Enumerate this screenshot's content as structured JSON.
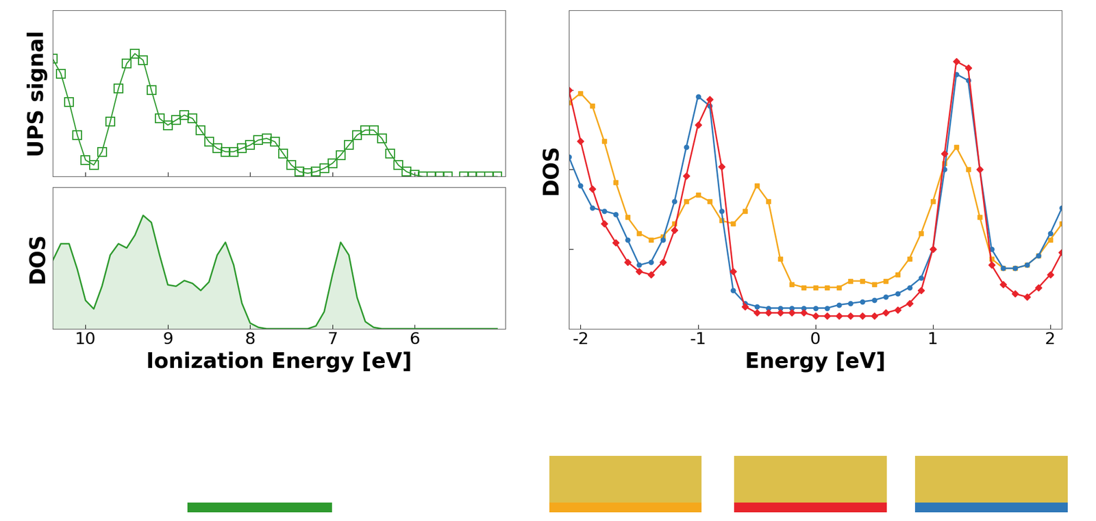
{
  "chart_data": [
    {
      "type": "line",
      "ylabel": "UPS signal",
      "x": [
        10.4,
        10.3,
        10.2,
        10.1,
        10.0,
        9.9,
        9.8,
        9.7,
        9.6,
        9.5,
        9.4,
        9.3,
        9.2,
        9.1,
        9.0,
        8.9,
        8.8,
        8.7,
        8.6,
        8.5,
        8.4,
        8.3,
        8.2,
        8.1,
        8.0,
        7.9,
        7.8,
        7.7,
        7.6,
        7.5,
        7.4,
        7.3,
        7.2,
        7.1,
        7.0,
        6.9,
        6.8,
        6.7,
        6.6,
        6.5,
        6.4,
        6.3,
        6.2,
        6.1,
        6.0,
        5.9,
        5.8,
        5.7,
        5.6,
        5.5,
        5.4,
        5.3,
        5.2,
        5.1,
        5.0
      ],
      "series": [
        {
          "color": "#2e9a2e",
          "marker": "open_square",
          "values": [
            0.71,
            0.62,
            0.45,
            0.25,
            0.1,
            0.07,
            0.15,
            0.33,
            0.53,
            0.68,
            0.74,
            0.7,
            0.52,
            0.35,
            0.31,
            0.34,
            0.37,
            0.35,
            0.28,
            0.21,
            0.17,
            0.15,
            0.15,
            0.17,
            0.19,
            0.22,
            0.23,
            0.21,
            0.14,
            0.07,
            0.03,
            0.02,
            0.03,
            0.05,
            0.08,
            0.13,
            0.19,
            0.25,
            0.28,
            0.28,
            0.23,
            0.14,
            0.07,
            0.03,
            0.01,
            0,
            0,
            0,
            0,
            null,
            0,
            0,
            0,
            0,
            0
          ]
        }
      ],
      "xlim": [
        10.4,
        4.9
      ],
      "ylim": [
        0,
        1
      ],
      "xticks": [
        10,
        9,
        8,
        7,
        6
      ],
      "yticks": [],
      "tick_labels": false
    },
    {
      "type": "area",
      "ylabel": "DOS",
      "xlabel": "Ionization Energy [eV]",
      "x": [
        10.4,
        10.3,
        10.2,
        10.1,
        10.0,
        9.9,
        9.8,
        9.7,
        9.6,
        9.5,
        9.4,
        9.3,
        9.2,
        9.1,
        9.0,
        8.9,
        8.8,
        8.7,
        8.6,
        8.5,
        8.4,
        8.3,
        8.2,
        8.1,
        8.0,
        7.9,
        7.8,
        7.7,
        7.6,
        7.5,
        7.4,
        7.3,
        7.2,
        7.1,
        7.0,
        6.9,
        6.8,
        6.7,
        6.6,
        6.5,
        6.4,
        6.3,
        6.2,
        6.1,
        6.0,
        5.9,
        5.8,
        5.7,
        5.6,
        5.5,
        5.4,
        5.3,
        5.2,
        5.1,
        5.0
      ],
      "series": [
        {
          "color": "#2e9a2e",
          "values": [
            0.48,
            0.6,
            0.6,
            0.42,
            0.2,
            0.14,
            0.3,
            0.52,
            0.6,
            0.57,
            0.66,
            0.8,
            0.75,
            0.52,
            0.31,
            0.3,
            0.34,
            0.32,
            0.27,
            0.33,
            0.52,
            0.61,
            0.45,
            0.18,
            0.04,
            0.01,
            0,
            0,
            0,
            0,
            0,
            0,
            0.02,
            0.12,
            0.38,
            0.61,
            0.52,
            0.22,
            0.05,
            0.01,
            0,
            0,
            0,
            0,
            0,
            0,
            0,
            0,
            0,
            0,
            0,
            0,
            0,
            0,
            0
          ]
        }
      ],
      "xlim": [
        10.4,
        4.9
      ],
      "ylim": [
        0,
        1
      ],
      "xticks": [
        10,
        9,
        8,
        7,
        6
      ],
      "yticks": [],
      "tick_labels": "x"
    },
    {
      "type": "line",
      "ylabel": "DOS",
      "xlabel": "Energy [eV]",
      "x": [
        -2.1,
        -2.0,
        -1.9,
        -1.8,
        -1.7,
        -1.6,
        -1.5,
        -1.4,
        -1.3,
        -1.2,
        -1.1,
        -1.0,
        -0.9,
        -0.8,
        -0.7,
        -0.6,
        -0.5,
        -0.4,
        -0.3,
        -0.2,
        -0.1,
        0.0,
        0.1,
        0.2,
        0.3,
        0.4,
        0.5,
        0.6,
        0.7,
        0.8,
        0.9,
        1.0,
        1.1,
        1.2,
        1.3,
        1.4,
        1.5,
        1.6,
        1.7,
        1.8,
        1.9,
        2.0,
        2.1
      ],
      "series": [
        {
          "color": "#f5a81c",
          "marker": "square",
          "values": [
            0.71,
            0.74,
            0.7,
            0.59,
            0.46,
            0.35,
            0.3,
            0.28,
            0.29,
            0.33,
            0.4,
            0.42,
            0.4,
            0.34,
            0.33,
            0.37,
            0.45,
            0.4,
            0.22,
            0.14,
            0.13,
            0.13,
            0.13,
            0.13,
            0.15,
            0.15,
            0.14,
            0.15,
            0.17,
            0.22,
            0.3,
            0.4,
            0.52,
            0.57,
            0.5,
            0.35,
            0.22,
            0.19,
            0.19,
            0.2,
            0.23,
            0.28,
            0.33
          ]
        },
        {
          "color": "#2f78b8",
          "marker": "circle",
          "values": [
            0.54,
            0.45,
            0.38,
            0.37,
            0.36,
            0.28,
            0.2,
            0.21,
            0.28,
            0.4,
            0.57,
            0.73,
            0.7,
            0.37,
            0.12,
            0.08,
            0.07,
            0.065,
            0.065,
            0.065,
            0.065,
            0.065,
            0.065,
            0.075,
            0.08,
            0.085,
            0.09,
            0.1,
            0.11,
            0.13,
            0.16,
            0.25,
            0.5,
            0.8,
            0.78,
            0.5,
            0.25,
            0.19,
            0.19,
            0.2,
            0.23,
            0.3,
            0.38
          ]
        },
        {
          "color": "#e8242b",
          "marker": "diamond",
          "values": [
            0.75,
            0.59,
            0.44,
            0.33,
            0.27,
            0.21,
            0.18,
            0.17,
            0.21,
            0.31,
            0.48,
            0.64,
            0.72,
            0.51,
            0.18,
            0.07,
            0.05,
            0.05,
            0.05,
            0.05,
            0.05,
            0.04,
            0.04,
            0.04,
            0.04,
            0.04,
            0.04,
            0.05,
            0.06,
            0.08,
            0.12,
            0.25,
            0.55,
            0.84,
            0.82,
            0.5,
            0.2,
            0.14,
            0.11,
            0.1,
            0.13,
            0.17,
            0.24
          ]
        }
      ],
      "xlim": [
        -2.1,
        2.1
      ],
      "ylim": [
        0,
        1
      ],
      "xticks": [
        -2,
        -1,
        0,
        1,
        2
      ],
      "yticks": [
        0.25,
        0.5,
        0.75
      ],
      "tick_labels": "x"
    }
  ]
}
